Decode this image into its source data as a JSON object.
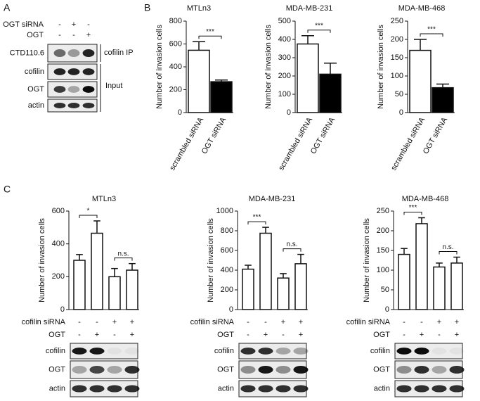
{
  "panel_labels": [
    "A",
    "B",
    "C"
  ],
  "panel_a": {
    "rows": [
      {
        "label": "OGT siRNA",
        "signs": [
          "-",
          "+",
          "-"
        ]
      },
      {
        "label": "OGT",
        "signs": [
          "-",
          "-",
          "+"
        ]
      }
    ],
    "blots": [
      "CTD110.6",
      "cofilin",
      "OGT",
      "actin"
    ],
    "groups": [
      "cofilin IP",
      "Input"
    ]
  },
  "chart_data": [
    {
      "type": "bar",
      "title": "MTLn3",
      "y_label": "Number of invasion cells",
      "categories": [
        "scrambled siRNA",
        "OGT siRNA"
      ],
      "series": [
        {
          "values": [
            545,
            270
          ],
          "errors": [
            75,
            15
          ]
        }
      ],
      "colors": [
        "#ffffff",
        "#000000"
      ],
      "ylim": [
        0,
        800
      ],
      "yticks": [
        0,
        200,
        400,
        600,
        800
      ],
      "annotations": [
        "***"
      ]
    },
    {
      "type": "bar",
      "title": "MDA-MB-231",
      "y_label": "Number of invasion cells",
      "categories": [
        "scrambled siRNA",
        "OGT siRNA"
      ],
      "series": [
        {
          "values": [
            375,
            210
          ],
          "errors": [
            45,
            60
          ]
        }
      ],
      "colors": [
        "#ffffff",
        "#000000"
      ],
      "ylim": [
        0,
        500
      ],
      "yticks": [
        0,
        100,
        200,
        300,
        400,
        500
      ],
      "annotations": [
        "***"
      ]
    },
    {
      "type": "bar",
      "title": "MDA-MB-468",
      "y_label": "Number of invasion cells",
      "categories": [
        "scrambled siRNA",
        "OGT siRNA"
      ],
      "series": [
        {
          "values": [
            170,
            68
          ],
          "errors": [
            30,
            10
          ]
        }
      ],
      "colors": [
        "#ffffff",
        "#000000"
      ],
      "ylim": [
        0,
        250
      ],
      "yticks": [
        0,
        50,
        100,
        150,
        200,
        250
      ],
      "annotations": [
        "***"
      ]
    },
    {
      "type": "bar",
      "title": "MTLn3",
      "y_label": "Number of invasion cells",
      "categories": [
        null,
        null,
        null,
        null
      ],
      "series": [
        {
          "values": [
            300,
            465,
            200,
            240
          ],
          "errors": [
            35,
            75,
            50,
            40
          ]
        }
      ],
      "colors": [
        "#ffffff",
        "#ffffff",
        "#ffffff",
        "#ffffff"
      ],
      "ylim": [
        0,
        600
      ],
      "yticks": [
        0,
        200,
        400,
        600
      ],
      "annotations": [
        "*",
        "n.s."
      ],
      "conditions": [
        {
          "label": "cofilin siRNA",
          "signs": [
            "-",
            "-",
            "+",
            "+"
          ]
        },
        {
          "label": "OGT",
          "signs": [
            "-",
            "+",
            "-",
            "+"
          ]
        }
      ],
      "blots": [
        "cofilin",
        "OGT",
        "actin"
      ]
    },
    {
      "type": "bar",
      "title": "MDA-MB-231",
      "y_label": "Number of invasion cells",
      "categories": [
        null,
        null,
        null,
        null
      ],
      "series": [
        {
          "values": [
            410,
            775,
            320,
            465
          ],
          "errors": [
            40,
            60,
            45,
            95
          ]
        }
      ],
      "colors": [
        "#ffffff",
        "#ffffff",
        "#ffffff",
        "#ffffff"
      ],
      "ylim": [
        0,
        1000
      ],
      "yticks": [
        0,
        200,
        400,
        600,
        800,
        1000
      ],
      "annotations": [
        "***",
        "n.s."
      ],
      "conditions": [
        {
          "label": "cofilin siRNA",
          "signs": [
            "-",
            "-",
            "+",
            "+"
          ]
        },
        {
          "label": "OGT",
          "signs": [
            "-",
            "+",
            "-",
            "+"
          ]
        }
      ],
      "blots": [
        "cofilin",
        "OGT",
        "actin"
      ]
    },
    {
      "type": "bar",
      "title": "MDA-MB-468",
      "y_label": "Number of invasion cells",
      "categories": [
        null,
        null,
        null,
        null
      ],
      "series": [
        {
          "values": [
            140,
            218,
            108,
            118
          ],
          "errors": [
            15,
            15,
            10,
            15
          ]
        }
      ],
      "colors": [
        "#ffffff",
        "#ffffff",
        "#ffffff",
        "#ffffff"
      ],
      "ylim": [
        0,
        250
      ],
      "yticks": [
        0,
        50,
        100,
        150,
        200,
        250
      ],
      "annotations": [
        "***",
        "n.s."
      ],
      "conditions": [
        {
          "label": "cofilin siRNA",
          "signs": [
            "-",
            "-",
            "+",
            "+"
          ]
        },
        {
          "label": "OGT",
          "signs": [
            "-",
            "+",
            "-",
            "+"
          ]
        }
      ],
      "blots": [
        "cofilin",
        "OGT",
        "actin"
      ]
    }
  ]
}
